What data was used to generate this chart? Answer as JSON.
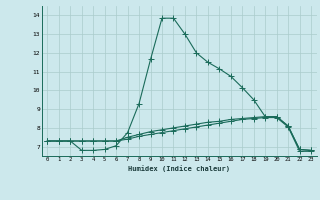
{
  "xlabel": "Humidex (Indice chaleur)",
  "bg_color": "#cce8ec",
  "grid_color": "#aacccc",
  "line_color": "#1a6b5a",
  "xlim": [
    -0.5,
    23.5
  ],
  "ylim": [
    6.5,
    14.5
  ],
  "xticks": [
    0,
    1,
    2,
    3,
    4,
    5,
    6,
    7,
    8,
    9,
    10,
    11,
    12,
    13,
    14,
    15,
    16,
    17,
    18,
    19,
    20,
    21,
    22,
    23
  ],
  "ytick_vals": [
    7,
    8,
    9,
    10,
    11,
    12,
    13,
    14
  ],
  "series1_x": [
    0,
    1,
    2,
    3,
    4,
    5,
    6,
    7,
    8,
    9,
    10,
    11,
    12,
    13,
    14,
    15,
    16,
    17,
    18,
    19,
    20,
    21,
    22,
    23
  ],
  "series1_y": [
    7.3,
    7.3,
    7.3,
    6.8,
    6.8,
    6.85,
    7.05,
    7.75,
    9.3,
    11.65,
    13.85,
    13.85,
    13.0,
    12.0,
    11.5,
    11.15,
    10.75,
    10.15,
    9.5,
    8.6,
    8.6,
    8.1,
    6.85,
    6.8
  ],
  "series2_x": [
    0,
    1,
    2,
    3,
    4,
    5,
    6,
    7,
    8,
    9,
    10,
    11,
    12,
    13,
    14,
    15,
    16,
    17,
    18,
    19,
    20,
    21,
    22,
    23
  ],
  "series2_y": [
    7.3,
    7.3,
    7.3,
    7.3,
    7.3,
    7.3,
    7.3,
    7.5,
    7.65,
    7.8,
    7.9,
    8.0,
    8.1,
    8.2,
    8.3,
    8.35,
    8.45,
    8.5,
    8.55,
    8.6,
    8.6,
    8.1,
    6.85,
    6.8
  ],
  "series3_x": [
    0,
    1,
    2,
    3,
    4,
    5,
    6,
    7,
    8,
    9,
    10,
    11,
    12,
    13,
    14,
    15,
    16,
    17,
    18,
    19,
    20,
    21,
    22,
    23
  ],
  "series3_y": [
    7.3,
    7.3,
    7.3,
    7.3,
    7.3,
    7.3,
    7.3,
    7.4,
    7.55,
    7.65,
    7.75,
    7.85,
    7.95,
    8.05,
    8.15,
    8.25,
    8.35,
    8.45,
    8.5,
    8.55,
    8.55,
    8.05,
    6.75,
    6.75
  ]
}
